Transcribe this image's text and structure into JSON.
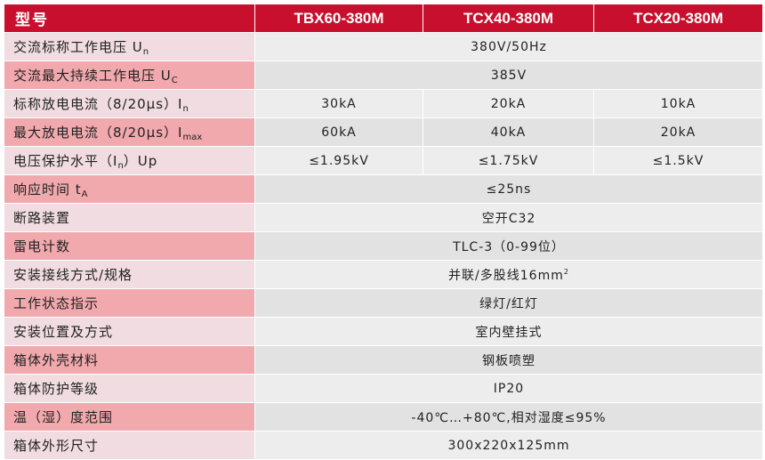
{
  "header": {
    "label": "型号",
    "models": [
      "TBX60-380M",
      "TCX40-380M",
      "TCX20-380M"
    ]
  },
  "rows": [
    {
      "label": "交流标称工作电压 U",
      "label_sub": "n",
      "label_tail": "",
      "value": "380V/50Hz"
    },
    {
      "label": "交流最大持续工作电压 U",
      "label_sub": "C",
      "label_tail": "",
      "value": "385V"
    },
    {
      "label": "标称放电电流（8/20μs）I",
      "label_sub": "n",
      "label_tail": "",
      "values": [
        "30kA",
        "20kA",
        "10kA"
      ]
    },
    {
      "label": "最大放电电流（8/20μs）I",
      "label_sub": "max",
      "label_tail": "",
      "values": [
        "60kA",
        "40kA",
        "20kA"
      ]
    },
    {
      "label": "电压保护水平（I",
      "label_sub": "n",
      "label_tail": "）Up",
      "values": [
        "≤1.95kV",
        "≤1.75kV",
        "≤1.5kV"
      ]
    },
    {
      "label": "响应时间 t",
      "label_sub": "A",
      "label_tail": "",
      "value": "≤25ns"
    },
    {
      "label": "断路装置",
      "value": "空开C32"
    },
    {
      "label": "雷电计数",
      "value": "TLC-3（0-99位）"
    },
    {
      "label": "安装接线方式/规格",
      "value": "并联/多股线16mm",
      "value_sup": "2"
    },
    {
      "label": "工作状态指示",
      "value": "绿灯/红灯"
    },
    {
      "label": "安装位置及方式",
      "value": "室内壁挂式"
    },
    {
      "label": "箱体外壳材料",
      "value": "钢板喷塑"
    },
    {
      "label": "箱体防护等级",
      "value": "IP20"
    },
    {
      "label": "温（湿）度范围",
      "value": "-40℃…+80℃,相对湿度≤95%"
    },
    {
      "label": "箱体外形尺寸",
      "value": "300x220x125mm"
    }
  ]
}
